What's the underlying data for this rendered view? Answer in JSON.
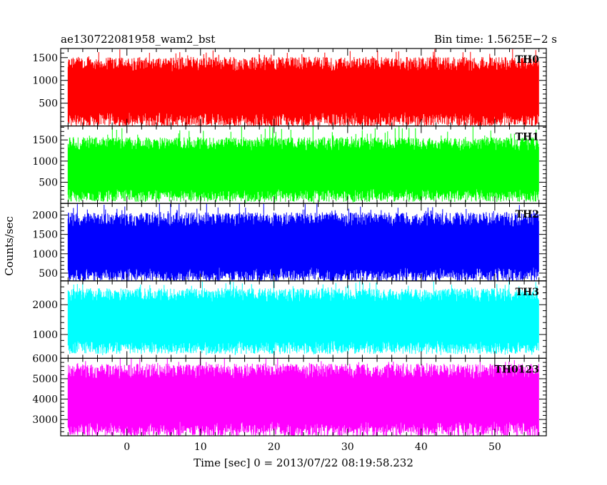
{
  "header": {
    "left_title": "ae130722081958_wam2_bst",
    "right_title": "Bin time: 1.5625E−2 s"
  },
  "chart_data": {
    "type": "line",
    "xlabel": "Time [sec] 0 = 2013/07/22 08:19:58.232",
    "ylabel": "Counts/sec",
    "xlim": [
      -9,
      57
    ],
    "x_ticks": [
      0,
      10,
      20,
      30,
      40,
      50
    ],
    "x_range_data": [
      -8,
      56
    ],
    "panels": [
      {
        "label": "TH0",
        "color": "#ff0000",
        "ylim": [
          0,
          1700
        ],
        "y_ticks": [
          500,
          1000,
          1500
        ],
        "typical_low": 300,
        "typical_high": 1200,
        "peak_min": 0,
        "peak_max": 1700
      },
      {
        "label": "TH1",
        "color": "#00ff00",
        "ylim": [
          0,
          1830
        ],
        "y_ticks": [
          500,
          1000,
          1500
        ],
        "typical_low": 350,
        "typical_high": 1250,
        "peak_min": 0,
        "peak_max": 1830
      },
      {
        "label": "TH2",
        "color": "#0000ff",
        "ylim": [
          300,
          2300
        ],
        "y_ticks": [
          500,
          1000,
          1500,
          2000
        ],
        "typical_low": 650,
        "typical_high": 1700,
        "peak_min": 300,
        "peak_max": 2300
      },
      {
        "label": "TH3",
        "color": "#00ffff",
        "ylim": [
          200,
          2800
        ],
        "y_ticks": [
          1000,
          2000
        ],
        "typical_low": 800,
        "typical_high": 2100,
        "peak_min": 300,
        "peak_max": 2800
      },
      {
        "label": "TH0123",
        "color": "#ff00ff",
        "ylim": [
          2200,
          6000
        ],
        "y_ticks": [
          3000,
          4000,
          5000,
          6000
        ],
        "typical_low": 2900,
        "typical_high": 5000,
        "peak_min": 2200,
        "peak_max": 6000
      }
    ]
  }
}
